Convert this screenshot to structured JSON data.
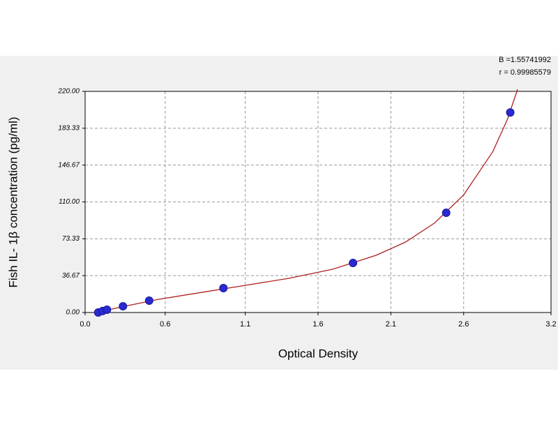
{
  "chart_data": {
    "type": "scatter",
    "xlabel": "Optical Density",
    "ylabel": "Fish IL- 1β concentration (pg/ml)",
    "annotations": [
      "B =1.55741992",
      "r = 0.99985579"
    ],
    "xlim": [
      0,
      3.2
    ],
    "ylim": [
      0,
      220
    ],
    "xticks": [
      {
        "value": 0,
        "label": "0.0"
      },
      {
        "value": 0.55,
        "label": "0.6"
      },
      1.1,
      1.6,
      2.1,
      2.6,
      3.2
    ],
    "yticks": [
      {
        "value": 0,
        "label": "0.00"
      },
      {
        "value": 36.67,
        "label": "36.67"
      },
      {
        "value": 73.33,
        "label": "73.33"
      },
      {
        "value": 110,
        "label": "110.00"
      },
      {
        "value": 146.67,
        "label": "146.67"
      },
      {
        "value": 183.33,
        "label": "183.33"
      },
      {
        "value": 220,
        "label": "220.00"
      }
    ],
    "grid": true,
    "series": [
      {
        "color": "#2a2ad0",
        "x": [
          0.09,
          0.12,
          0.15,
          0.26,
          0.44,
          0.95,
          1.84,
          2.48,
          2.92
        ],
        "values": [
          0,
          1.5,
          2.8,
          6.2,
          11.8,
          24.3,
          49.3,
          99.2,
          199
        ]
      },
      {
        "color": "#b02020",
        "line": true,
        "x": [
          0.09,
          0.3,
          0.5,
          0.8,
          1.1,
          1.4,
          1.7,
          2.0,
          2.2,
          2.4,
          2.6,
          2.8,
          2.9,
          2.97
        ],
        "values": [
          0.5,
          7,
          13,
          20,
          27,
          34,
          43,
          57,
          70,
          89,
          117,
          160,
          192,
          222
        ]
      }
    ]
  }
}
